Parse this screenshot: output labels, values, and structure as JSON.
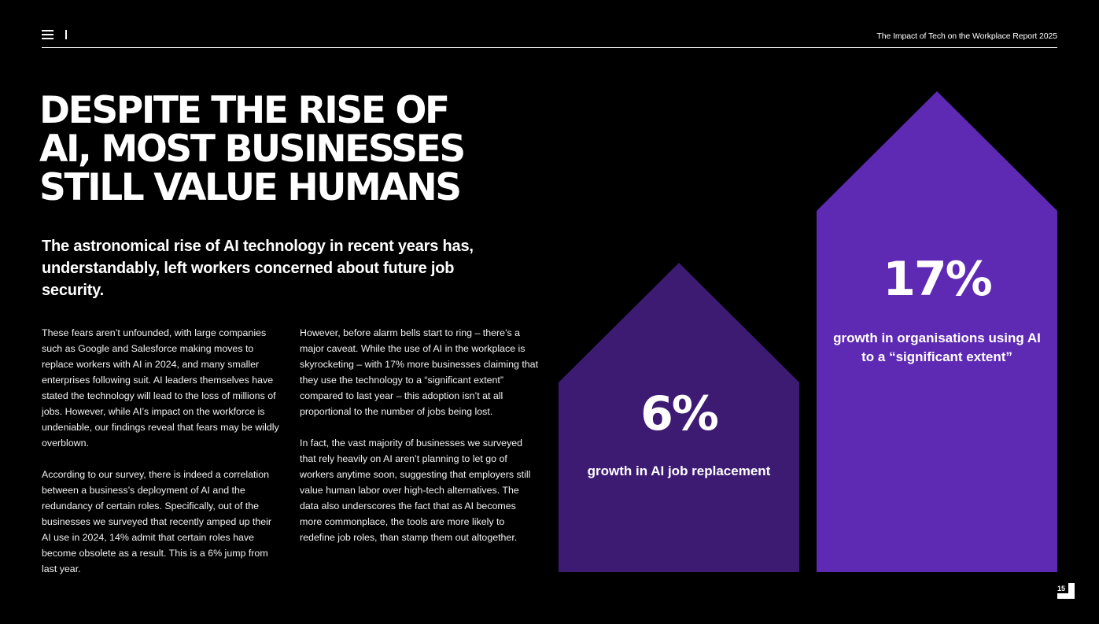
{
  "header": {
    "menu_icon": "hamburger-menu-icon",
    "report_title": "The Impact of Tech on the Workplace Report 2025"
  },
  "headline": [
    "DESPITE THE RISE OF",
    "AI, MOST BUSINESSES",
    "STILL VALUE HUMANS"
  ],
  "intro": "The astronomical rise of AI technology in recent years has, understandably, left workers concerned about future job security.",
  "body": {
    "left": [
      "These fears aren’t unfounded, with large companies such as Google and Salesforce making moves to replace workers with AI in 2024, and many smaller enterprises following suit. AI leaders themselves have stated the technology will lead to the loss of millions of jobs. However, while AI’s impact on the workforce is undeniable, our findings reveal that fears may be wildly overblown.",
      "According to our survey, there is indeed a correlation between a business’s deployment of AI and the redundancy of certain roles. Specifically, out of the businesses we surveyed that recently amped up their AI use in 2024, 14% admit that certain roles have become obsolete as a result. This is a 6% jump from last year."
    ],
    "right": [
      "However, before alarm bells start to ring – there’s a major caveat. While the use of AI in the workplace is skyrocketing – with 17% more businesses claiming that they use the technology to a “significant extent” compared to last year – this adoption isn’t at all proportional to the number of jobs being lost.",
      "In fact, the vast majority of businesses we surveyed that rely heavily on AI aren’t planning to let go of workers anytime soon, suggesting that employers still value human labor over high-tech alternatives. The data also underscores the fact that as AI becomes more commonplace, the tools are more likely to redefine job roles, than stamp them out altogether."
    ]
  },
  "chart_data": {
    "type": "bar",
    "title": "",
    "categories": [
      "growth in AI job replacement",
      "growth in organisations using AI to a “significant extent”"
    ],
    "values": [
      6,
      17
    ],
    "value_labels": [
      "6%",
      "17%"
    ],
    "unit": "%",
    "ylim": [
      0,
      17
    ],
    "colors": [
      "#3d1b73",
      "#5f2ab3"
    ],
    "grid": false,
    "legend": "none"
  },
  "footer": {
    "page_number": "15"
  }
}
